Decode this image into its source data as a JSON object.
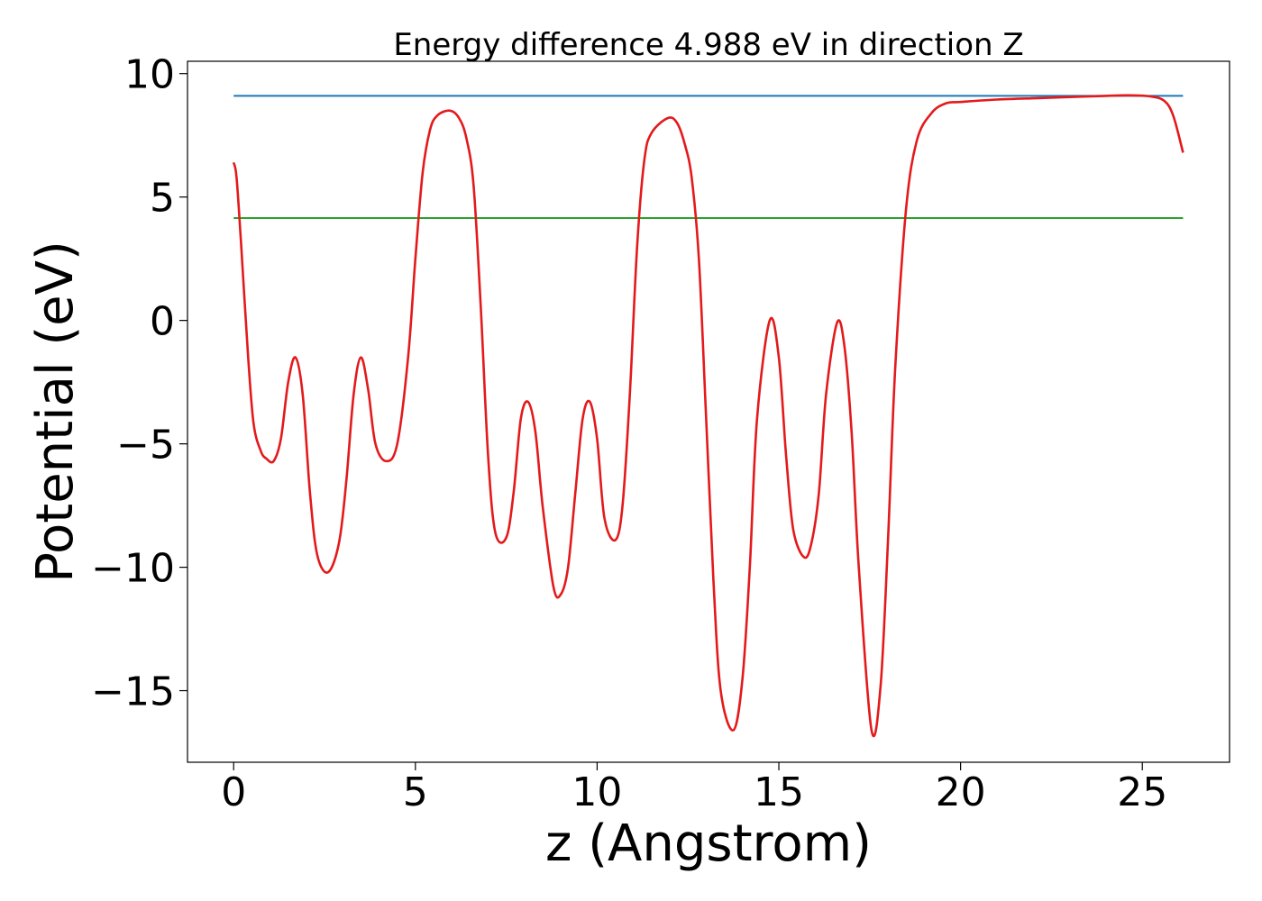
{
  "chart_data": {
    "type": "line",
    "title": "Energy difference 4.988 eV in direction Z",
    "xlabel": "z (Angstrom)",
    "ylabel": "Potential (eV)",
    "xlim": [
      -1.27,
      27.4
    ],
    "ylim": [
      -17.9,
      10.5
    ],
    "x_ticks": [
      0,
      5,
      10,
      15,
      20,
      25
    ],
    "x_tick_labels": [
      "0",
      "5",
      "10",
      "15",
      "20",
      "25"
    ],
    "y_ticks": [
      10,
      5,
      0,
      -5,
      -10,
      -15
    ],
    "y_tick_labels": [
      "10",
      "5",
      "0",
      "−5",
      "−10",
      "−15"
    ],
    "grid": false,
    "colors": {
      "potential": "#e31a1c",
      "vacuum_level": "#1f77b4",
      "fermi_level": "#2ca02c"
    },
    "series": [
      {
        "key": "vacuum_level",
        "x": [
          0,
          26.12
        ],
        "y": [
          9.1,
          9.1
        ]
      },
      {
        "key": "fermi_level",
        "x": [
          0,
          26.12
        ],
        "y": [
          4.15,
          4.15
        ]
      },
      {
        "key": "potential",
        "x": [
          0,
          0.08,
          0.2,
          0.4,
          0.55,
          0.75,
          0.9,
          1.1,
          1.3,
          1.5,
          1.7,
          1.9,
          2.1,
          2.3,
          2.6,
          2.9,
          3.1,
          3.3,
          3.5,
          3.7,
          3.9,
          4.2,
          4.5,
          4.8,
          5.0,
          5.2,
          5.4,
          5.6,
          5.95,
          6.2,
          6.4,
          6.6,
          6.8,
          7.0,
          7.2,
          7.5,
          7.7,
          7.9,
          8.1,
          8.3,
          8.5,
          8.8,
          9.0,
          9.2,
          9.4,
          9.6,
          9.8,
          10.0,
          10.2,
          10.5,
          10.7,
          10.9,
          11.1,
          11.3,
          11.5,
          11.95,
          12.2,
          12.4,
          12.6,
          12.8,
          13.0,
          13.2,
          13.4,
          13.75,
          14.0,
          14.2,
          14.4,
          14.75,
          15.0,
          15.2,
          15.4,
          15.7,
          15.9,
          16.1,
          16.3,
          16.6,
          16.8,
          17.0,
          17.2,
          17.55,
          17.8,
          18.0,
          18.2,
          18.5,
          18.8,
          19.2,
          19.6,
          20.0,
          21.0,
          22.0,
          23.0,
          24.0,
          24.6,
          25.2,
          25.6,
          25.85,
          26.12
        ],
        "y": [
          6.4,
          5.8,
          3.2,
          -1.5,
          -4.2,
          -5.3,
          -5.6,
          -5.7,
          -4.8,
          -2.5,
          -1.5,
          -3.0,
          -7.0,
          -9.5,
          -10.2,
          -9.0,
          -6.5,
          -3.0,
          -1.5,
          -2.8,
          -5.0,
          -5.7,
          -5.0,
          -1.5,
          2.5,
          6.0,
          7.7,
          8.3,
          8.5,
          8.2,
          7.4,
          5.5,
          0.5,
          -5.5,
          -8.6,
          -8.8,
          -7.0,
          -4.0,
          -3.3,
          -4.5,
          -7.5,
          -10.8,
          -11.1,
          -10.0,
          -7.0,
          -4.0,
          -3.3,
          -4.8,
          -8.0,
          -8.9,
          -7.5,
          -3.0,
          3.0,
          6.5,
          7.6,
          8.2,
          8.0,
          7.2,
          5.8,
          2.5,
          -4.0,
          -10.5,
          -15.0,
          -16.6,
          -14.5,
          -10.0,
          -4.0,
          0.0,
          -1.5,
          -5.5,
          -8.5,
          -9.6,
          -9.0,
          -7.0,
          -3.0,
          -0.1,
          -1.0,
          -4.5,
          -10.0,
          -16.6,
          -14.8,
          -9.0,
          -2.0,
          4.5,
          7.3,
          8.4,
          8.8,
          8.85,
          8.95,
          9.0,
          9.05,
          9.1,
          9.12,
          9.08,
          8.9,
          8.3,
          6.8
        ]
      }
    ]
  }
}
